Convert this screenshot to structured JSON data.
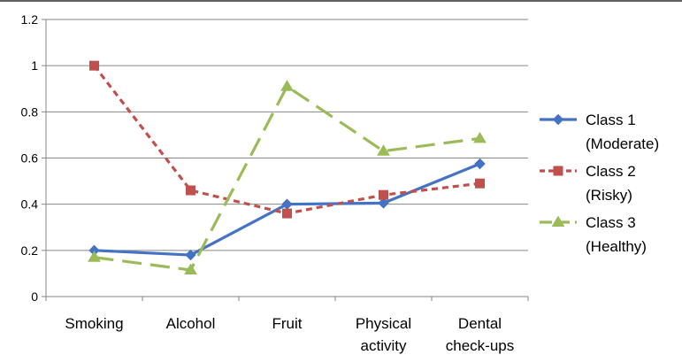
{
  "chart_data": {
    "type": "line",
    "categories": [
      [
        "Smoking"
      ],
      [
        "Alcohol"
      ],
      [
        "Fruit"
      ],
      [
        "Physical",
        "activity"
      ],
      [
        "Dental",
        "check-ups"
      ]
    ],
    "ylim": [
      0,
      1.2
    ],
    "yticks": [
      "0",
      "0.2",
      "0.4",
      "0.6",
      "0.8",
      "1",
      "1.2"
    ],
    "grid": true,
    "legend_position": "right",
    "series": [
      {
        "name": [
          "Class 1",
          "(Moderate)"
        ],
        "values": [
          0.2,
          0.18,
          0.4,
          0.405,
          0.575
        ],
        "color": "#4472C4",
        "marker": "diamond",
        "dash": "solid"
      },
      {
        "name": [
          "Class 2",
          "(Risky)"
        ],
        "values": [
          1.0,
          0.46,
          0.36,
          0.44,
          0.49
        ],
        "color": "#C0504D",
        "marker": "square",
        "dash": "dotted"
      },
      {
        "name": [
          "Class 3",
          "(Healthy)"
        ],
        "values": [
          0.17,
          0.115,
          0.91,
          0.63,
          0.685
        ],
        "color": "#9BBB59",
        "marker": "triangle",
        "dash": "dashed"
      }
    ]
  }
}
